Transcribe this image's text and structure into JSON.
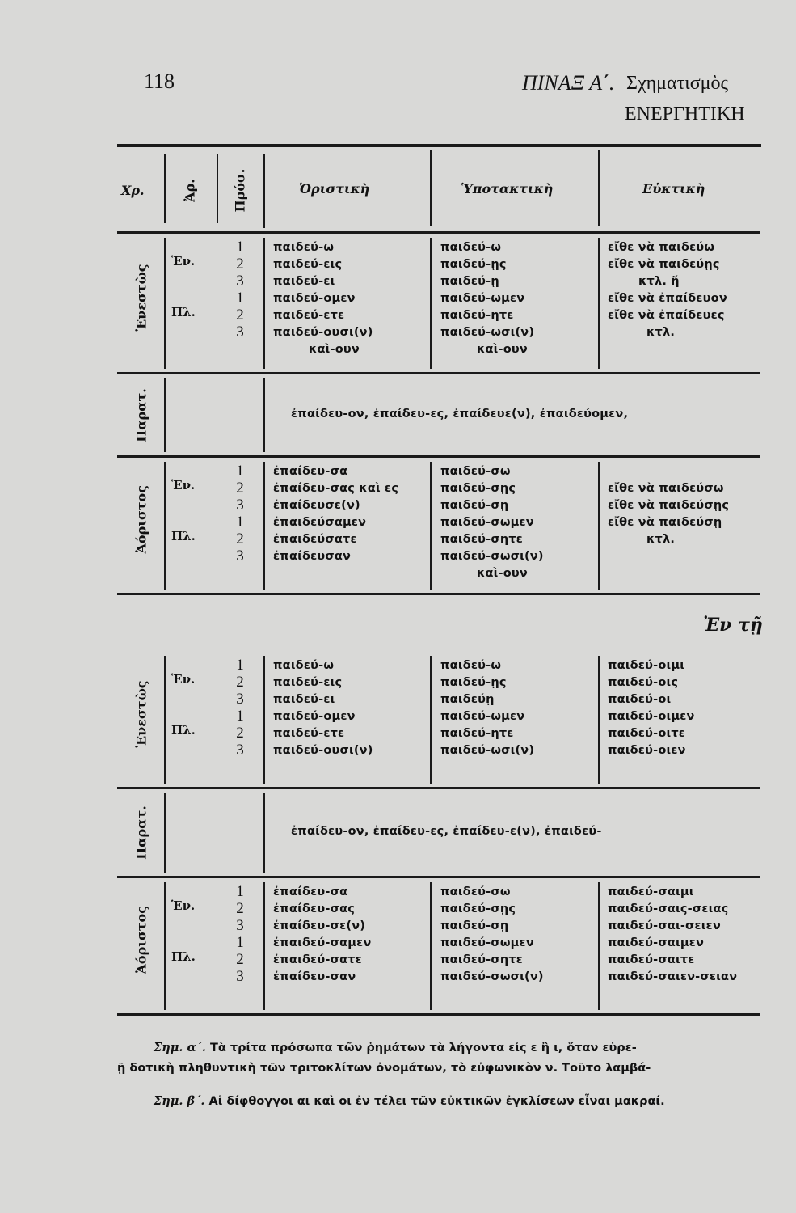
{
  "page_number": "118",
  "title": "ΠΙΝΑΞ Α΄.",
  "title_rest": "Σχηματισμὸς",
  "subtitle": "ΕΝΕΡΓΗΤΙΚΗ",
  "headers": {
    "tense": "Χρ.",
    "number": "Ἀρ.",
    "person": "Πρόσ.",
    "indicative": "Ὁριστικὴ",
    "subjunctive": "Ὑποτακτικὴ",
    "optative": "Εὐκτικὴ"
  },
  "section_break_label": "Ἐν τῇ",
  "sections": [
    {
      "tense": "Ἐνεστὼς",
      "type": "full",
      "numbers": [
        "Ἑν.",
        "Πλ."
      ],
      "persons": [
        "1",
        "2",
        "3",
        "1",
        "2",
        "3"
      ],
      "indicative": [
        "παιδεύ-ω",
        "παιδεύ-εις",
        "παιδεύ-ει",
        "παιδεύ-ομεν",
        "παιδεύ-ετε",
        "παιδεύ-ουσι(ν)",
        "καὶ-ουν"
      ],
      "subjunctive": [
        "παιδεύ-ω",
        "παιδεύ-ῃς",
        "παιδεύ-ῃ",
        "παιδεύ-ωμεν",
        "παιδεύ-ητε",
        "παιδεύ-ωσι(ν)",
        "καὶ-ουν"
      ],
      "optative": [
        "εἴθε νὰ παιδεύω",
        "εἴθε νὰ παιδεύῃς",
        "κτλ. ἤ",
        "εἴθε νὰ ἐπαίδευον",
        "εἴθε νὰ ἐπαίδευες",
        "κτλ."
      ]
    },
    {
      "tense": "Παρατ.",
      "type": "line",
      "text": "ἐπαίδευ-ον, ἐπαίδευ-ες, ἐπαίδευε(ν), ἐπαιδεύομεν,"
    },
    {
      "tense": "Ἀόριστος",
      "type": "full",
      "numbers": [
        "Ἑν.",
        "Πλ."
      ],
      "persons": [
        "1",
        "2",
        "3",
        "1",
        "2",
        "3"
      ],
      "indicative": [
        "ἐπαίδευ-σα",
        "ἐπαίδευ-σας καὶ ες",
        "ἐπαίδευσε(ν)",
        "ἐπαιδεύσαμεν",
        "ἐπαιδεύσατε",
        "ἐπαίδευσαν"
      ],
      "subjunctive": [
        "παιδεύ-σω",
        "παιδεύ-σῃς",
        "παιδεύ-σῃ",
        "παιδεύ-σωμεν",
        "παιδεύ-σητε",
        "παιδεύ-σωσι(ν)",
        "καὶ-ουν"
      ],
      "optative": [
        "",
        "εἴθε νὰ παιδεύσω",
        "εἴθε νὰ παιδεύσῃς",
        "εἴθε νὰ παιδεύσῃ",
        "κτλ."
      ]
    },
    {
      "tense": "Ἐνεστὼς",
      "type": "full",
      "numbers": [
        "Ἑν.",
        "Πλ."
      ],
      "persons": [
        "1",
        "2",
        "3",
        "1",
        "2",
        "3"
      ],
      "indicative": [
        "παιδεύ-ω",
        "παιδεύ-εις",
        "παιδεύ-ει",
        "παιδεύ-ομεν",
        "παιδεύ-ετε",
        "παιδεύ-ουσι(ν)"
      ],
      "subjunctive": [
        "παιδεύ-ω",
        "παιδεύ-ῃς",
        "παιδεύῃ",
        "παιδεύ-ωμεν",
        "παιδεύ-ητε",
        "παιδεύ-ωσι(ν)"
      ],
      "optative": [
        "παιδεύ-οιμι",
        "παιδεύ-οις",
        "παιδεύ-οι",
        "παιδεύ-οιμεν",
        "παιδεύ-οιτε",
        "παιδεύ-οιεν"
      ]
    },
    {
      "tense": "Παρατ.",
      "type": "line",
      "text": "ἐπαίδευ-ον, ἐπαίδευ-ες, ἐπαίδευ-ε(ν), ἐπαιδεύ-"
    },
    {
      "tense": "Ἀόριστος",
      "type": "full",
      "numbers": [
        "Ἑν.",
        "Πλ."
      ],
      "persons": [
        "1",
        "2",
        "3",
        "1",
        "2",
        "3"
      ],
      "indicative": [
        "ἐπαίδευ-σα",
        "ἐπαίδευ-σας",
        "ἐπαίδευ-σε(ν)",
        "ἐπαιδεύ-σαμεν",
        "ἐπαιδεύ-σατε",
        "ἐπαίδευ-σαν"
      ],
      "subjunctive": [
        "παιδεύ-σω",
        "παιδεύ-σῃς",
        "παιδεύ-σῃ",
        "παιδεύ-σωμεν",
        "παιδεύ-σητε",
        "παιδεύ-σωσι(ν)"
      ],
      "optative": [
        "παιδεύ-σαιμι",
        "παιδεύ-σαις-σειας",
        "παιδεύ-σαι-σειεν",
        "παιδεύ-σαιμεν",
        "παιδεύ-σαιτε",
        "παιδεύ-σαιεν-σειαν"
      ]
    }
  ],
  "notes": [
    {
      "label": "Σημ. α΄.",
      "text": " Τὰ τρίτα πρόσωπα τῶν ῥημάτων τὰ λήγοντα εἰς ε ἢ ι, ὅταν εὑρε-"
    },
    {
      "label": "",
      "text": "ῇ δοτικὴ πληθυντικὴ τῶν τριτοκλίτων ὀνομάτων, τὸ εὐφωνικὸν ν. Τοῦτο λαμβά-"
    },
    {
      "label": "Σημ. β΄.",
      "text": " Αἱ δίφθογγοι αι καὶ οι ἐν τέλει τῶν εὐκτικῶν ἐγκλίσεων εἶναι μακραί."
    }
  ]
}
